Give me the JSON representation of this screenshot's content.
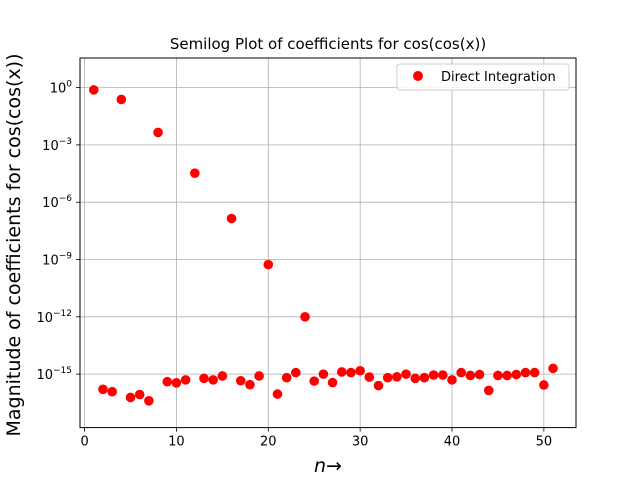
{
  "chart_data": {
    "type": "scatter",
    "title": "Semilog Plot of coefficients for cos(cos(x))",
    "xlabel": "n→",
    "ylabel": "Magnitude of coefficients for cos(cos(x))",
    "yscale": "log",
    "xlim": [
      -0.5,
      53.5
    ],
    "ylog10_lim": [
      -17.8,
      1.55
    ],
    "grid": true,
    "legend_position": "top-right",
    "x_ticks": [
      {
        "value": 0,
        "label": "0"
      },
      {
        "value": 10,
        "label": "10"
      },
      {
        "value": 20,
        "label": "20"
      },
      {
        "value": 30,
        "label": "30"
      },
      {
        "value": 40,
        "label": "40"
      },
      {
        "value": 50,
        "label": "50"
      }
    ],
    "y_ticks": [
      {
        "value": 1.0,
        "base": "10",
        "exp": "0"
      },
      {
        "value": 0.001,
        "base": "10",
        "exp": "−3"
      },
      {
        "value": 1e-06,
        "base": "10",
        "exp": "−6"
      },
      {
        "value": 1e-09,
        "base": "10",
        "exp": "−9"
      },
      {
        "value": 1e-12,
        "base": "10",
        "exp": "−12"
      },
      {
        "value": 1e-15,
        "base": "10",
        "exp": "−15"
      }
    ],
    "series": [
      {
        "name": "Direct Integration",
        "color": "#ff0000",
        "marker": "circle",
        "x": [
          1,
          2,
          3,
          4,
          5,
          6,
          7,
          8,
          9,
          10,
          11,
          12,
          13,
          14,
          15,
          16,
          17,
          18,
          19,
          20,
          21,
          22,
          23,
          24,
          25,
          26,
          27,
          28,
          29,
          30,
          31,
          32,
          33,
          34,
          35,
          36,
          37,
          38,
          39,
          40,
          41,
          42,
          43,
          44,
          45,
          46,
          47,
          48,
          49,
          50,
          51
        ],
        "y": [
          0.76,
          1.6e-16,
          1.2e-16,
          0.24,
          6e-17,
          8.5e-17,
          4e-17,
          0.0045,
          4e-16,
          3.5e-16,
          5e-16,
          3.3e-05,
          6e-16,
          5e-16,
          8e-16,
          1.4e-07,
          4.5e-16,
          2.8e-16,
          8e-16,
          5.4e-10,
          9e-17,
          6.5e-16,
          1.2e-15,
          1e-12,
          4.3e-16,
          1e-15,
          3.6e-16,
          1.3e-15,
          1.2e-15,
          1.5e-15,
          7e-16,
          2.5e-16,
          6.5e-16,
          7.2e-16,
          1e-15,
          6e-16,
          6.5e-16,
          9e-16,
          9e-16,
          5e-16,
          1.2e-15,
          8.5e-16,
          9.5e-16,
          1.4e-16,
          8.5e-16,
          8.5e-16,
          9.5e-16,
          1.2e-15,
          1.2e-15,
          2.7e-16,
          2e-15
        ]
      }
    ]
  }
}
